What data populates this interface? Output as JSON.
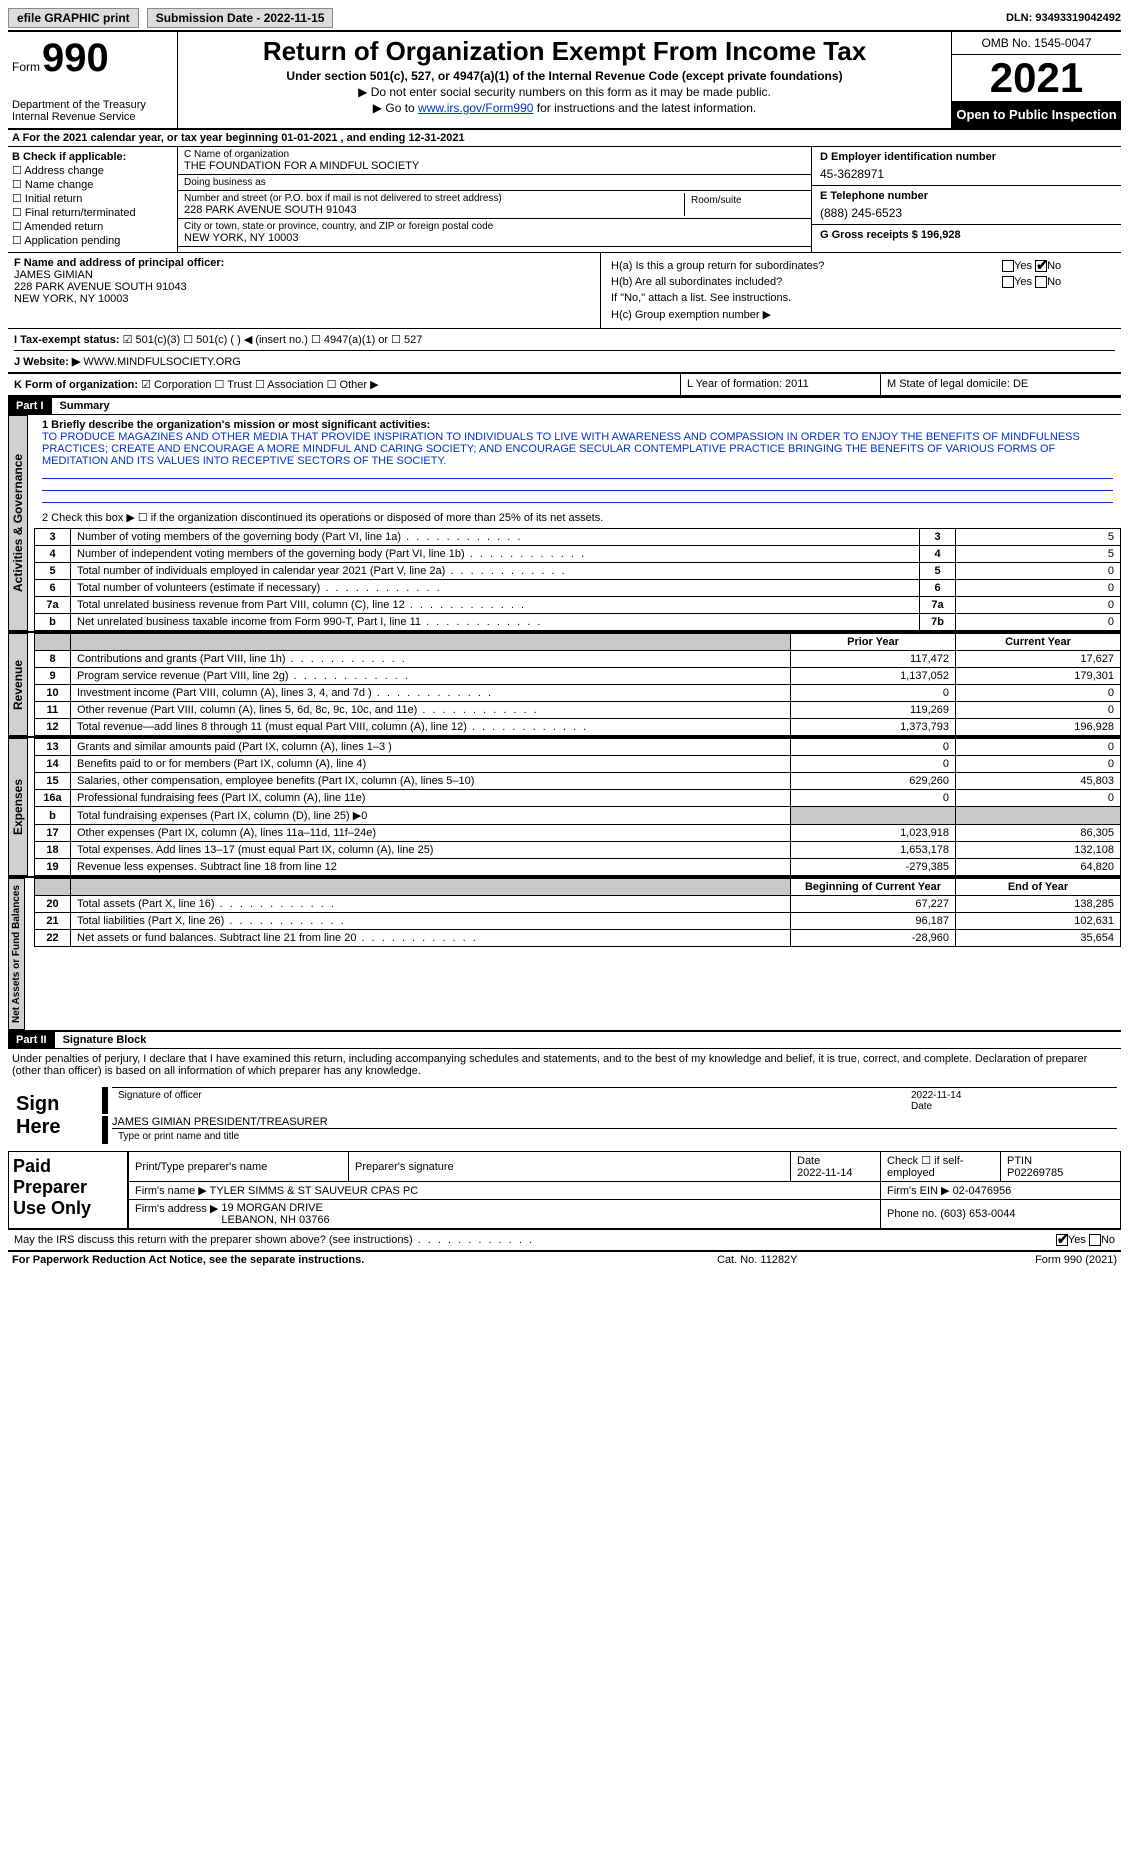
{
  "topbar": {
    "efile_label": "efile GRAPHIC print",
    "sub_date_label": "Submission Date - 2022-11-15",
    "dln_label": "DLN: 93493319042492"
  },
  "header": {
    "form_word": "Form",
    "form_num": "990",
    "dept": "Department of the Treasury\nInternal Revenue Service",
    "title": "Return of Organization Exempt From Income Tax",
    "sub1": "Under section 501(c), 527, or 4947(a)(1) of the Internal Revenue Code (except private foundations)",
    "sub2": "▶ Do not enter social security numbers on this form as it may be made public.",
    "sub3_pre": "▶ Go to ",
    "sub3_link": "www.irs.gov/Form990",
    "sub3_post": " for instructions and the latest information.",
    "omb": "OMB No. 1545-0047",
    "year": "2021",
    "open_pub": "Open to Public Inspection"
  },
  "line_a": "A For the 2021 calendar year, or tax year beginning 01-01-2021     , and ending 12-31-2021",
  "col_b": {
    "title": "B Check if applicable:",
    "items": [
      "☐ Address change",
      "☐ Name change",
      "☐ Initial return",
      "☐ Final return/terminated",
      "☐ Amended return",
      "☐ Application pending"
    ]
  },
  "col_c": {
    "name_label": "C Name of organization",
    "name": "THE FOUNDATION FOR A MINDFUL SOCIETY",
    "dba_label": "Doing business as",
    "dba": "",
    "street_label": "Number and street (or P.O. box if mail is not delivered to street address)",
    "street": "228 PARK AVENUE SOUTH 91043",
    "suite_label": "Room/suite",
    "city_label": "City or town, state or province, country, and ZIP or foreign postal code",
    "city": "NEW YORK, NY  10003"
  },
  "col_d": {
    "ein_label": "D Employer identification number",
    "ein": "45-3628971",
    "tel_label": "E Telephone number",
    "tel": "(888) 245-6523",
    "gross_label": "G Gross receipts $ 196,928"
  },
  "f": {
    "label": "F  Name and address of principal officer:",
    "name": "JAMES GIMIAN",
    "addr1": "228 PARK AVENUE SOUTH 91043",
    "addr2": "NEW YORK, NY  10003"
  },
  "h": {
    "ha": "H(a)  Is this a group return for subordinates?",
    "hb": "H(b)  Are all subordinates included?",
    "hb_note": "If \"No,\" attach a list. See instructions.",
    "hc": "H(c)  Group exemption number ▶",
    "yes": "Yes",
    "no": "No"
  },
  "i": {
    "label": "I   Tax-exempt status:",
    "opts": "☑ 501(c)(3)   ☐  501(c) (  ) ◀ (insert no.)     ☐  4947(a)(1) or   ☐  527"
  },
  "j": {
    "label": "J   Website: ▶",
    "val": " WWW.MINDFULSOCIETY.ORG"
  },
  "k": {
    "label": "K Form of organization:",
    "opts": " ☑ Corporation  ☐ Trust  ☐ Association  ☐ Other ▶"
  },
  "l": {
    "label": "L Year of formation: 2011"
  },
  "m": {
    "label": "M State of legal domicile: DE"
  },
  "part1": {
    "head": "Part I",
    "title": "Summary"
  },
  "mission": {
    "line1_label": "1   Briefly describe the organization's mission or most significant activities:",
    "text": "TO PRODUCE MAGAZINES AND OTHER MEDIA THAT PROVIDE INSPIRATION TO INDIVIDUALS TO LIVE WITH AWARENESS AND COMPASSION IN ORDER TO ENJOY THE BENEFITS OF MINDFULNESS PRACTICES; CREATE AND ENCOURAGE A MORE MINDFUL AND CARING SOCIETY; AND ENCOURAGE SECULAR CONTEMPLATIVE PRACTICE BRINGING THE BENEFITS OF VARIOUS FORMS OF MEDITATION AND ITS VALUES INTO RECEPTIVE SECTORS OF THE SOCIETY.",
    "line2": "2    Check this box ▶ ☐  if the organization discontinued its operations or disposed of more than 25% of its net assets."
  },
  "gov_rows": [
    {
      "n": "3",
      "desc": "Number of voting members of the governing body (Part VI, line 1a)",
      "lab": "3",
      "val": "5"
    },
    {
      "n": "4",
      "desc": "Number of independent voting members of the governing body (Part VI, line 1b)",
      "lab": "4",
      "val": "5"
    },
    {
      "n": "5",
      "desc": "Total number of individuals employed in calendar year 2021 (Part V, line 2a)",
      "lab": "5",
      "val": "0"
    },
    {
      "n": "6",
      "desc": "Total number of volunteers (estimate if necessary)",
      "lab": "6",
      "val": "0"
    },
    {
      "n": "7a",
      "desc": "Total unrelated business revenue from Part VIII, column (C), line 12",
      "lab": "7a",
      "val": "0"
    },
    {
      "n": "b",
      "desc": "Net unrelated business taxable income from Form 990-T, Part I, line 11",
      "lab": "7b",
      "val": "0"
    }
  ],
  "rev_head": {
    "prior": "Prior Year",
    "curr": "Current Year"
  },
  "rev_rows": [
    {
      "n": "8",
      "desc": "Contributions and grants (Part VIII, line 1h)",
      "p": "117,472",
      "c": "17,627"
    },
    {
      "n": "9",
      "desc": "Program service revenue (Part VIII, line 2g)",
      "p": "1,137,052",
      "c": "179,301"
    },
    {
      "n": "10",
      "desc": "Investment income (Part VIII, column (A), lines 3, 4, and 7d )",
      "p": "0",
      "c": "0"
    },
    {
      "n": "11",
      "desc": "Other revenue (Part VIII, column (A), lines 5, 6d, 8c, 9c, 10c, and 11e)",
      "p": "119,269",
      "c": "0"
    },
    {
      "n": "12",
      "desc": "Total revenue—add lines 8 through 11 (must equal Part VIII, column (A), line 12)",
      "p": "1,373,793",
      "c": "196,928"
    }
  ],
  "exp_rows": [
    {
      "n": "13",
      "desc": "Grants and similar amounts paid (Part IX, column (A), lines 1–3 )",
      "p": "0",
      "c": "0"
    },
    {
      "n": "14",
      "desc": "Benefits paid to or for members (Part IX, column (A), line 4)",
      "p": "0",
      "c": "0"
    },
    {
      "n": "15",
      "desc": "Salaries, other compensation, employee benefits (Part IX, column (A), lines 5–10)",
      "p": "629,260",
      "c": "45,803"
    },
    {
      "n": "16a",
      "desc": "Professional fundraising fees (Part IX, column (A), line 11e)",
      "p": "0",
      "c": "0"
    },
    {
      "n": "b",
      "desc": "Total fundraising expenses (Part IX, column (D), line 25) ▶0",
      "p": "",
      "c": "",
      "shade": true
    },
    {
      "n": "17",
      "desc": "Other expenses (Part IX, column (A), lines 11a–11d, 11f–24e)",
      "p": "1,023,918",
      "c": "86,305"
    },
    {
      "n": "18",
      "desc": "Total expenses. Add lines 13–17 (must equal Part IX, column (A), line 25)",
      "p": "1,653,178",
      "c": "132,108"
    },
    {
      "n": "19",
      "desc": "Revenue less expenses. Subtract line 18 from line 12",
      "p": "-279,385",
      "c": "64,820"
    }
  ],
  "na_head": {
    "prior": "Beginning of Current Year",
    "curr": "End of Year"
  },
  "na_rows": [
    {
      "n": "20",
      "desc": "Total assets (Part X, line 16)",
      "p": "67,227",
      "c": "138,285"
    },
    {
      "n": "21",
      "desc": "Total liabilities (Part X, line 26)",
      "p": "96,187",
      "c": "102,631"
    },
    {
      "n": "22",
      "desc": "Net assets or fund balances. Subtract line 21 from line 20",
      "p": "-28,960",
      "c": "35,654"
    }
  ],
  "vtabs": {
    "gov": "Activities & Governance",
    "rev": "Revenue",
    "exp": "Expenses",
    "na": "Net Assets or Fund Balances"
  },
  "part2": {
    "head": "Part II",
    "title": "Signature Block"
  },
  "sig": {
    "penalty": "Under penalties of perjury, I declare that I have examined this return, including accompanying schedules and statements, and to the best of my knowledge and belief, it is true, correct, and complete. Declaration of preparer (other than officer) is based on all information of which preparer has any knowledge.",
    "sign_here": "Sign Here",
    "sig_officer_lbl": "Signature of officer",
    "date_lbl": "Date",
    "date_val": "2022-11-14",
    "name_title": "JAMES GIMIAN  PRESIDENT/TREASURER",
    "name_title_lbl": "Type or print name and title"
  },
  "prep": {
    "label": "Paid Preparer Use Only",
    "h1": "Print/Type preparer's name",
    "h2": "Preparer's signature",
    "h3": "Date",
    "h3v": "2022-11-14",
    "h4": "Check ☐ if self-employed",
    "h5": "PTIN",
    "h5v": "P02269785",
    "firm_name_lbl": "Firm's name     ▶",
    "firm_name": "TYLER SIMMS & ST SAUVEUR CPAS PC",
    "firm_ein_lbl": "Firm's EIN ▶",
    "firm_ein": "02-0476956",
    "firm_addr_lbl": "Firm's address ▶",
    "firm_addr": "19 MORGAN DRIVE\nLEBANON, NH  03766",
    "firm_phone_lbl": "Phone no.",
    "firm_phone": "(603) 653-0044"
  },
  "may_irs": "May the IRS discuss this return with the preparer shown above? (see instructions)",
  "footer": {
    "l": "For Paperwork Reduction Act Notice, see the separate instructions.",
    "m": "Cat. No. 11282Y",
    "r": "Form 990 (2021)"
  }
}
